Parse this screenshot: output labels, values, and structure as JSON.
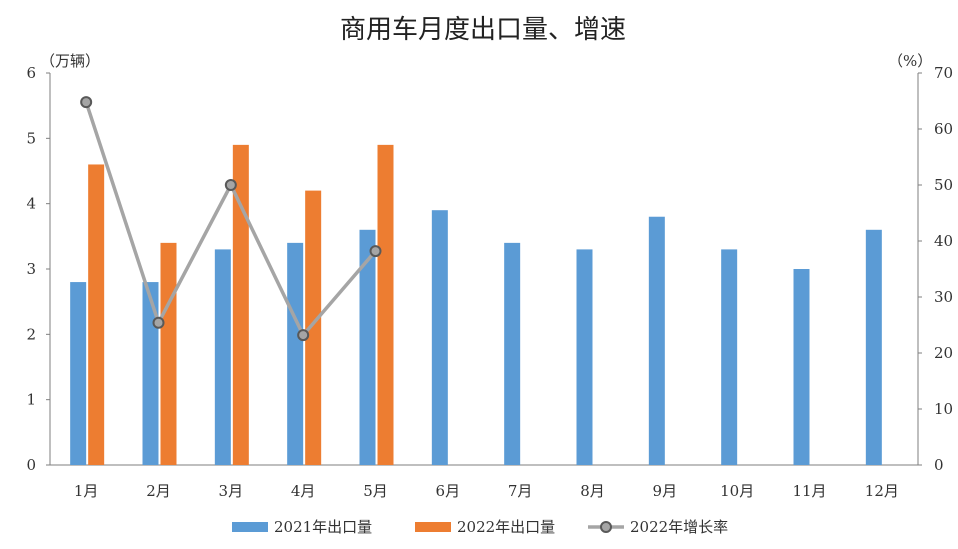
{
  "chart_data": {
    "type": "bar",
    "title": "商用车月度出口量、增速",
    "ylabel_left": "（万辆）",
    "ylabel_right": "（%）",
    "categories": [
      "1月",
      "2月",
      "3月",
      "4月",
      "5月",
      "6月",
      "7月",
      "8月",
      "9月",
      "10月",
      "11月",
      "12月"
    ],
    "ylim_left": [
      0,
      6
    ],
    "yticks_left": [
      0,
      1,
      2,
      3,
      4,
      5,
      6
    ],
    "ylim_right": [
      0,
      70
    ],
    "yticks_right": [
      0,
      10,
      20,
      30,
      40,
      50,
      60,
      70
    ],
    "series": [
      {
        "name": "2021年出口量",
        "type": "bar",
        "axis": "left",
        "color": "#5B9BD5",
        "values": [
          2.8,
          2.8,
          3.3,
          3.4,
          3.6,
          3.9,
          3.4,
          3.3,
          3.8,
          3.3,
          3.0,
          3.6
        ]
      },
      {
        "name": "2022年出口量",
        "type": "bar",
        "axis": "left",
        "color": "#ED7D31",
        "values": [
          4.6,
          3.4,
          4.9,
          4.2,
          4.9,
          null,
          null,
          null,
          null,
          null,
          null,
          null
        ]
      },
      {
        "name": "2022年增长率",
        "type": "line",
        "axis": "right",
        "color": "#A5A5A5",
        "values": [
          64.8,
          25.4,
          50.0,
          23.2,
          38.2,
          null,
          null,
          null,
          null,
          null,
          null,
          null
        ]
      }
    ],
    "grid": false,
    "legend_position": "bottom"
  }
}
